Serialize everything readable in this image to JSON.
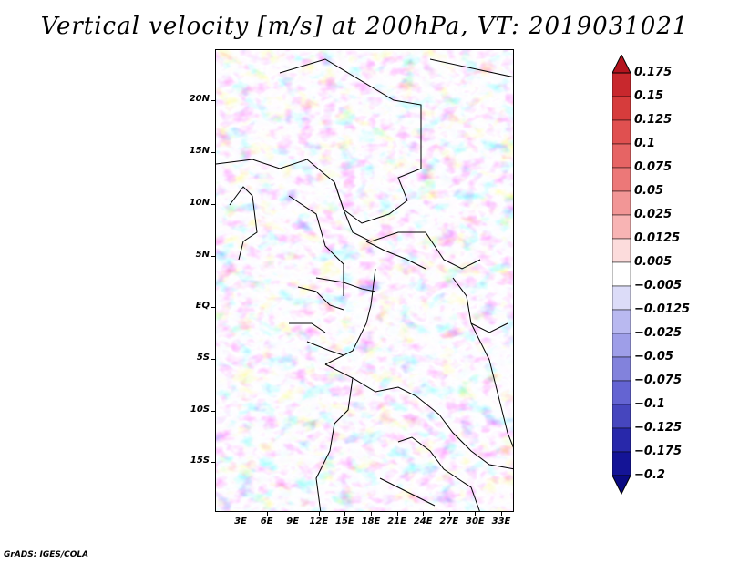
{
  "title": "Vertical velocity [m/s] at 200hPa, VT: 2019031021",
  "footer": "GrADS: IGES/COLA",
  "map": {
    "lat_labels": [
      "20N",
      "15N",
      "10N",
      "5N",
      "EQ",
      "5S",
      "10S",
      "15S"
    ],
    "lon_labels": [
      "3E",
      "6E",
      "9E",
      "12E",
      "15E",
      "18E",
      "21E",
      "24E",
      "27E",
      "30E",
      "33E"
    ]
  },
  "colorbar": {
    "labels": [
      "0.175",
      "0.15",
      "0.125",
      "0.1",
      "0.075",
      "0.05",
      "0.025",
      "0.0125",
      "0.005",
      "−0.005",
      "−0.0125",
      "−0.025",
      "−0.05",
      "−0.075",
      "−0.1",
      "−0.125",
      "−0.175",
      "−0.2"
    ],
    "colors": [
      "#b4141e",
      "#c8282d",
      "#d63c3c",
      "#e05050",
      "#e66464",
      "#ec7878",
      "#f29696",
      "#f8b4b4",
      "#fcdcdc",
      "#ffffff",
      "#dcdcf8",
      "#b9b9f0",
      "#9e9ee8",
      "#8282dc",
      "#6464d2",
      "#4646be",
      "#2828aa",
      "#141496",
      "#0a0a82"
    ]
  }
}
